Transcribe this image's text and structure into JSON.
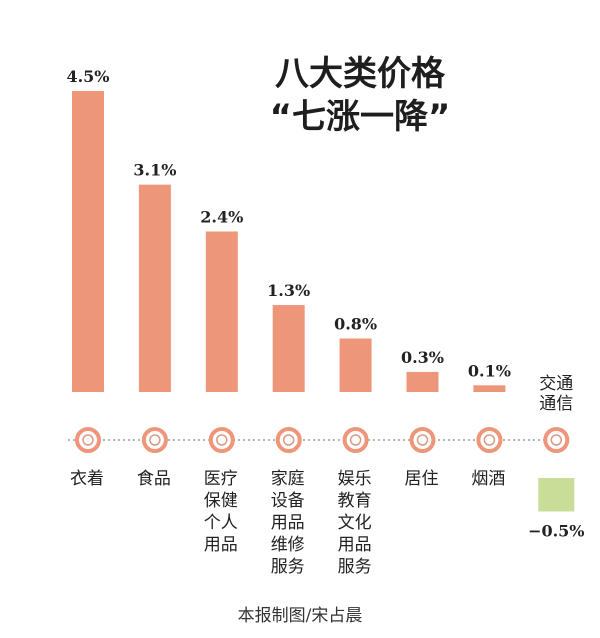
{
  "chart_data": {
    "type": "bar",
    "title": [
      "八大类价格",
      "“七涨一降”"
    ],
    "categories": [
      "衣着",
      "食品",
      "医疗保健个人用品",
      "家庭设备用品维修服务",
      "娱乐教育文化用品服务",
      "居住",
      "烟酒",
      "交通通信"
    ],
    "category_lines": [
      [
        "衣着"
      ],
      [
        "食品"
      ],
      [
        "医疗",
        "保健",
        "个人",
        "用品"
      ],
      [
        "家庭",
        "设备",
        "用品",
        "维修",
        "服务"
      ],
      [
        "娱乐",
        "教育",
        "文化",
        "用品",
        "服务"
      ],
      [
        "居住"
      ],
      [
        "烟酒"
      ],
      [
        "交通",
        "通信"
      ]
    ],
    "values": [
      4.5,
      3.1,
      2.4,
      1.3,
      0.8,
      0.3,
      0.1,
      -0.5
    ],
    "labels": [
      "4.5%",
      "3.1%",
      "2.4%",
      "1.3%",
      "0.8%",
      "0.3%",
      "0.1%",
      "−0.5%"
    ],
    "colors": {
      "positive": "#ee967a",
      "negative": "#c8dd98",
      "marker": "#ee967a",
      "axis": "#8a8a8a"
    },
    "ylim": [
      -0.5,
      4.5
    ],
    "grid": false,
    "legend": false
  },
  "credit": "本报制图/宋占晨"
}
